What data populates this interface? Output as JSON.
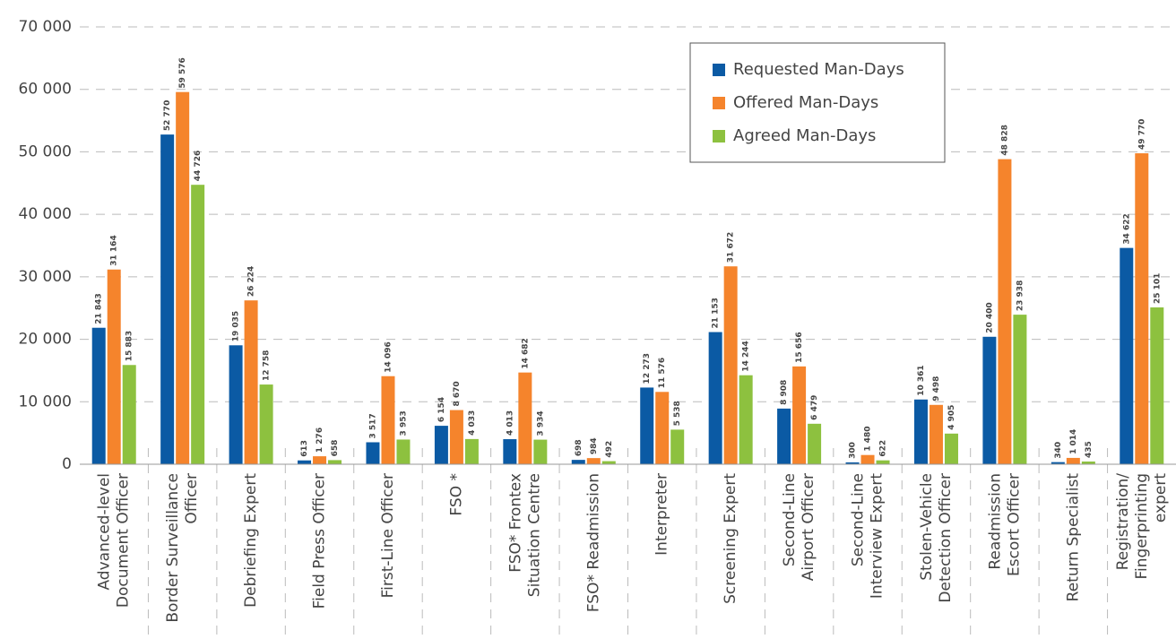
{
  "chart_data": {
    "type": "bar",
    "categories": [
      [
        "Advanced-level",
        "Document Officer"
      ],
      [
        "Border Surveillance",
        "Officer"
      ],
      [
        "Debriefing Expert"
      ],
      [
        "Field Press Officer"
      ],
      [
        "First-Line Officer"
      ],
      [
        "FSO *"
      ],
      [
        "FSO* Frontex",
        "Situation Centre"
      ],
      [
        "FSO* Readmission"
      ],
      [
        "Interpreter"
      ],
      [
        "Screening Expert"
      ],
      [
        "Second-Line",
        "Airport Officer"
      ],
      [
        "Second-Line",
        "Interview Expert"
      ],
      [
        "Stolen-Vehicle",
        "Detection Officer"
      ],
      [
        "Readmission",
        "Escort Officer"
      ],
      [
        "Return Specialist"
      ],
      [
        "Registration/",
        "Fingerprinting",
        "expert"
      ]
    ],
    "series": [
      {
        "name": "Requested Man-Days",
        "color": "#0b5aa4",
        "values": [
          21843,
          52770,
          19035,
          613,
          3517,
          6154,
          4013,
          698,
          12273,
          21153,
          8908,
          300,
          10361,
          20400,
          340,
          34622
        ],
        "value_labels": [
          "21 843",
          "52 770",
          "19 035",
          "613",
          "3 517",
          "6 154",
          "4 013",
          "698",
          "12 273",
          "21 153",
          "8 908",
          "300",
          "10 361",
          "20 400",
          "340",
          "34 622"
        ]
      },
      {
        "name": "Offered Man-Days",
        "color": "#f5842c",
        "values": [
          31164,
          59576,
          26224,
          1276,
          14096,
          8670,
          14682,
          984,
          11576,
          31672,
          15656,
          1480,
          9498,
          48828,
          1014,
          49770
        ],
        "value_labels": [
          "31 164",
          "59 576",
          "26 224",
          "1 276",
          "14 096",
          "8 670",
          "14 682",
          "984",
          "11 576",
          "31 672",
          "15 656",
          "1 480",
          "9 498",
          "48 828",
          "1 014",
          "49 770"
        ]
      },
      {
        "name": "Agreed Man-Days",
        "color": "#8dc13f",
        "values": [
          15883,
          44726,
          12758,
          658,
          3953,
          4033,
          3934,
          492,
          5538,
          14244,
          6479,
          622,
          4905,
          23938,
          435,
          25101
        ],
        "value_labels": [
          "15 883",
          "44 726",
          "12 758",
          "658",
          "3 953",
          "4 033",
          "3 934",
          "492",
          "5 538",
          "14 244",
          "6 479",
          "622",
          "4 905",
          "23 938",
          "435",
          "25 101"
        ]
      }
    ],
    "ylim": [
      0,
      70000
    ],
    "yticks": [
      0,
      {
        "value": 10000,
        "label": "10 000"
      },
      {
        "value": 20000,
        "label": "20 000"
      },
      {
        "value": 30000,
        "label": "30 000"
      },
      {
        "value": 40000,
        "label": "40 000"
      },
      {
        "value": 50000,
        "label": "50 000"
      },
      {
        "value": 60000,
        "label": "60 000"
      },
      {
        "value": 70000,
        "label": "70 000"
      }
    ],
    "grid": true,
    "legend": "top-right"
  }
}
